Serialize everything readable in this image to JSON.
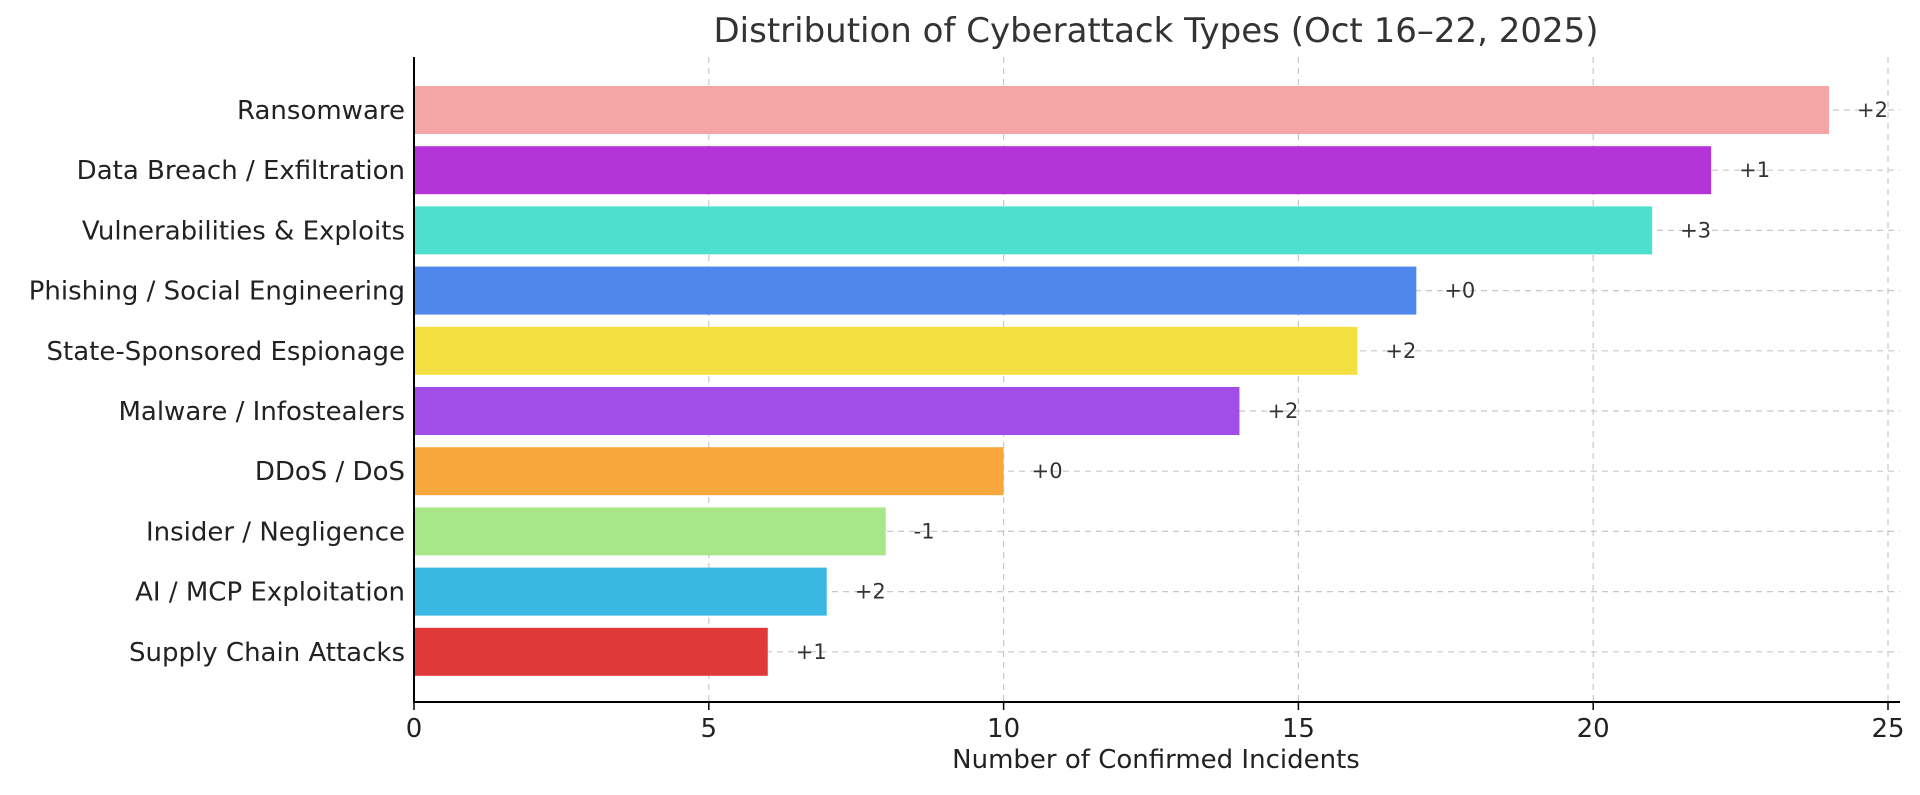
{
  "chart_data": {
    "type": "bar",
    "orientation": "horizontal",
    "title": "Distribution of Cyberattack Types (Oct 16–22, 2025)",
    "xlabel": "Number of Confirmed Incidents",
    "ylabel": "",
    "xlim": [
      0,
      25
    ],
    "xticks": [
      "0",
      "5",
      "10",
      "15",
      "20",
      "25"
    ],
    "grid": true,
    "categories": [
      "Ransomware",
      "Data Breach / Exfiltration",
      "Vulnerabilities & Exploits",
      "Phishing / Social Engineering",
      "State-Sponsored Espionage",
      "Malware / Infostealers",
      "DDoS / DoS",
      "Insider / Negligence",
      "AI / MCP Exploitation",
      "Supply Chain Attacks"
    ],
    "values": [
      24,
      22,
      21,
      17,
      16,
      14,
      10,
      8,
      7,
      6
    ],
    "annotations": [
      "+2",
      "+1",
      "+3",
      "+0",
      "+2",
      "+2",
      "+0",
      "-1",
      "+2",
      "+1"
    ],
    "colors": [
      "#f4a6a6",
      "#b534d8",
      "#4ee0cf",
      "#4f87ea",
      "#f5e042",
      "#a24de8",
      "#f8a73d",
      "#a8e68a",
      "#3bb7e3",
      "#e0393a"
    ]
  }
}
